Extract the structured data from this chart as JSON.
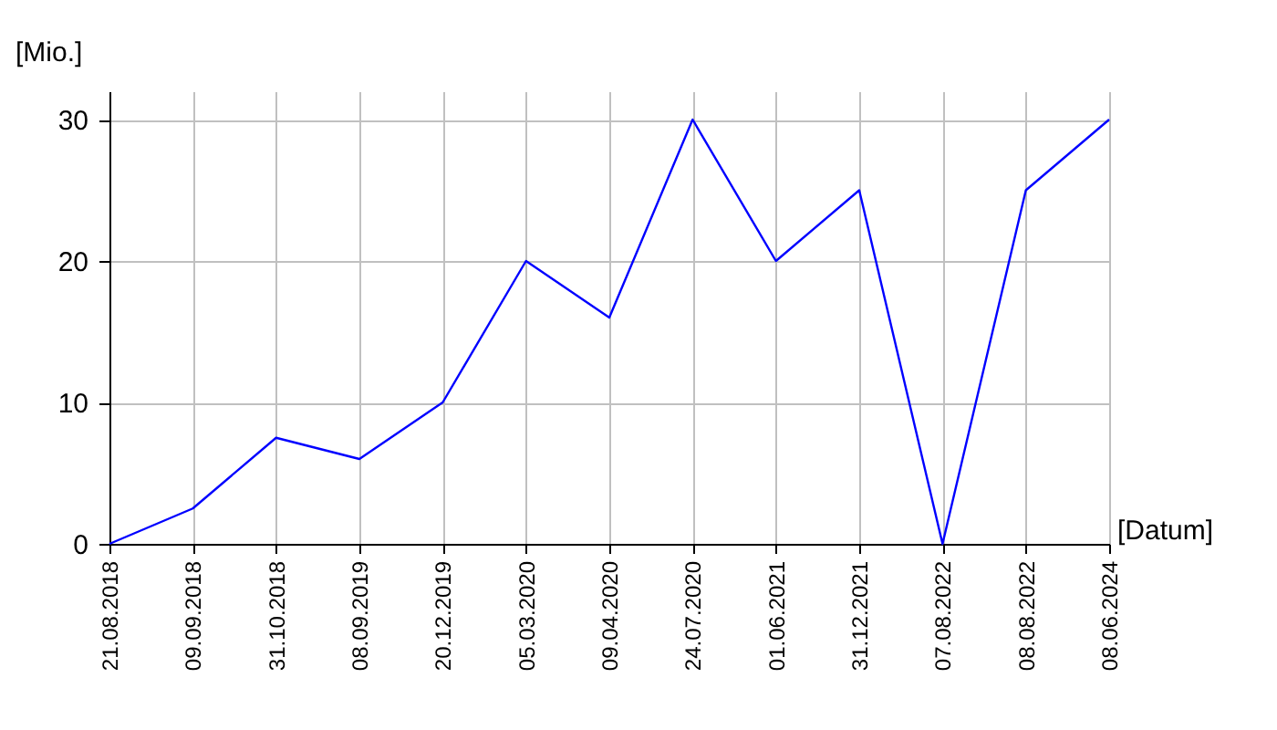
{
  "chart_data": {
    "type": "line",
    "xlabel": "[Datum]",
    "ylabel": "[Mio.]",
    "categories": [
      "21.08.2018",
      "09.09.2018",
      "31.10.2018",
      "08.09.2019",
      "20.12.2019",
      "05.03.2020",
      "09.04.2020",
      "24.07.2020",
      "01.06.2021",
      "31.12.2021",
      "07.08.2022",
      "08.08.2022",
      "08.06.2024"
    ],
    "series": [
      {
        "color": "#0000ff",
        "values": [
          0,
          2.5,
          7.5,
          6,
          10,
          20,
          16,
          30,
          20,
          25,
          0,
          25,
          30
        ]
      }
    ],
    "ylim": [
      0,
      32
    ],
    "yticks": [
      0,
      10,
      20,
      30
    ],
    "grid": true,
    "legend": false,
    "marker": "none",
    "line_style": "solid"
  }
}
